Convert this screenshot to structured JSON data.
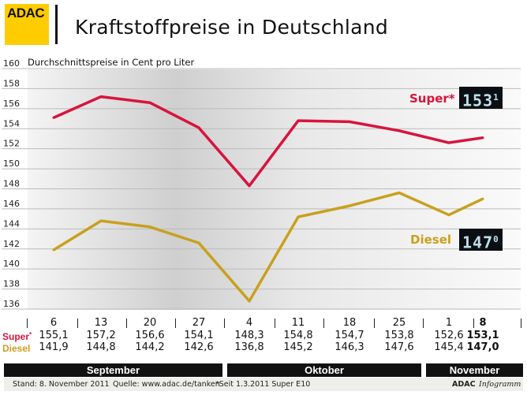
{
  "header": {
    "logo": "ADAC",
    "title": "Kraftstoffpreise in Deutschland"
  },
  "chart_data": {
    "type": "line",
    "title": "Kraftstoffpreise in Deutschland",
    "subtitle": "Durchschnittspreise in Cent pro Liter",
    "categories": [
      "6",
      "13",
      "20",
      "27",
      "4",
      "11",
      "18",
      "25",
      "1",
      "8"
    ],
    "ylim": [
      136,
      160
    ],
    "yticks": [
      "160",
      "158",
      "156",
      "154",
      "152",
      "150",
      "148",
      "146",
      "144",
      "142",
      "140",
      "138",
      "136"
    ],
    "grid": true,
    "series": [
      {
        "name": "Super*",
        "color": "#d7143c",
        "values": [
          155.1,
          157.2,
          156.6,
          154.1,
          148.3,
          154.8,
          154.7,
          153.8,
          152.6,
          153.1
        ],
        "labels": [
          "155,1",
          "157,2",
          "156,6",
          "154,1",
          "148,3",
          "154,8",
          "154,7",
          "153,8",
          "152,6",
          "153,1"
        ]
      },
      {
        "name": "Diesel",
        "color": "#c9a01e",
        "values": [
          141.9,
          144.8,
          144.2,
          142.6,
          136.8,
          145.2,
          146.3,
          147.6,
          145.4,
          147.0
        ],
        "labels": [
          "141,9",
          "144,8",
          "144,2",
          "142,6",
          "136,8",
          "145,2",
          "146,3",
          "147,6",
          "145,4",
          "147,0"
        ]
      }
    ],
    "months": [
      "September",
      "Oktober",
      "November"
    ]
  },
  "displays": {
    "super_main": "153",
    "super_dec": "1",
    "diesel_main": "147",
    "diesel_dec": "0"
  },
  "table": {
    "row_super": "Super",
    "super_star": "*",
    "row_diesel": "Diesel"
  },
  "footer": {
    "stand": "Stand: 8. November 2011",
    "quelle": "Quelle: www.adac.de/tanken",
    "note": "*Seit 1.3.2011 Super E10",
    "brand": "ADAC",
    "brand2": "Infogramm"
  }
}
